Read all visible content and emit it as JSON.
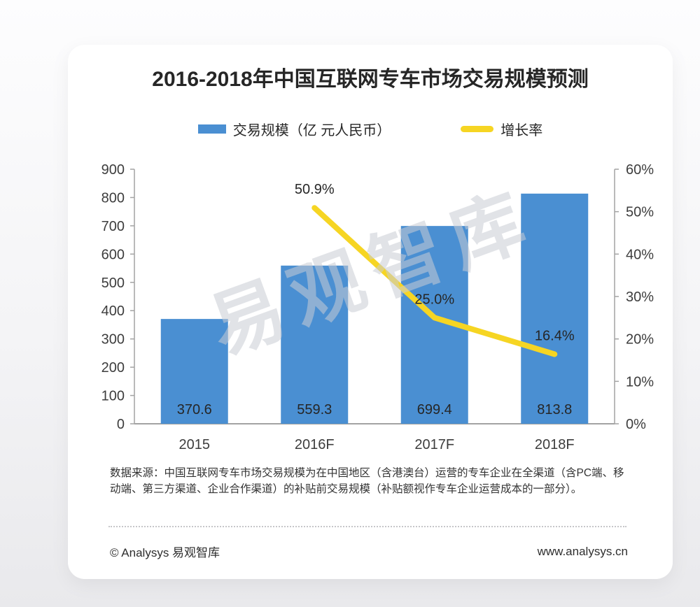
{
  "title": "2016-2018年中国互联网专车市场交易规模预测",
  "legend": {
    "items": [
      {
        "label": "交易规模（亿 元人民币）",
        "type": "bar"
      },
      {
        "label": "增长率",
        "type": "line"
      }
    ]
  },
  "colors": {
    "bar_blue": "#4a8fd2",
    "line_yellow": "#f6d523",
    "axis_gray": "#a3a3a3",
    "text_dark": "#262626",
    "watermark_gray": "rgba(201,204,212,0.55)"
  },
  "watermark_text": "易观智库",
  "source_note": "数据来源：中国互联网专车市场交易规模为在中国地区（含港澳台）运营的专车企业在全渠道（含PC端、移动端、第三方渠道、企业合作渠道）的补贴前交易规模（补贴额视作专车企业运营成本的一部分）。",
  "footer": {
    "copyright": "© Analysys 易观智库",
    "website": "www.analysys.cn"
  },
  "chart_data": {
    "type": "bar",
    "subtype": "bar+line-combo",
    "title": "2016-2018年中国互联网专车市场交易规模预测",
    "categories": [
      "2015",
      "2016F",
      "2017F",
      "2018F"
    ],
    "series": [
      {
        "name": "交易规模（亿 元人民币）",
        "type": "bar",
        "axis": "left",
        "values": [
          370.6,
          559.3,
          699.4,
          813.8
        ],
        "value_labels": [
          "370.6",
          "559.3",
          "699.4",
          "813.8"
        ],
        "color": "#4a8fd2"
      },
      {
        "name": "增长率",
        "type": "line",
        "axis": "right",
        "values": [
          null,
          50.9,
          25.0,
          16.4
        ],
        "value_labels": [
          null,
          "50.9%",
          "25.0%",
          "16.4%"
        ],
        "color": "#f6d523"
      }
    ],
    "left_axis": {
      "min": 0,
      "max": 900,
      "step": 100,
      "ticks": [
        "0",
        "100",
        "200",
        "300",
        "400",
        "500",
        "600",
        "700",
        "800",
        "900"
      ]
    },
    "right_axis": {
      "min": 0,
      "max": 60,
      "step": 10,
      "ticks": [
        "0%",
        "10%",
        "20%",
        "30%",
        "40%",
        "50%",
        "60%"
      ]
    },
    "grid": false,
    "legend_position": "top"
  }
}
